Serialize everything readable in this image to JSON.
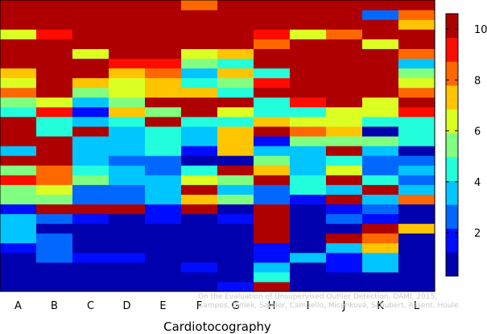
{
  "chart_data": {
    "type": "heatmap",
    "title": "",
    "xlabel": "Cardiotocography",
    "ylabel": "",
    "categories": [
      "A",
      "B",
      "C",
      "D",
      "E",
      "F",
      "G",
      "H",
      "I",
      "J",
      "K",
      "L"
    ],
    "colorbar": {
      "min": 0.3,
      "max": 10.6,
      "ticks": [
        2,
        4,
        6,
        8,
        10
      ],
      "colormap": "jet"
    },
    "rows": 30,
    "columns": [
      {
        "name": "A",
        "values": [
          1,
          1,
          0.8,
          1,
          2,
          3.2,
          3.2,
          3.2,
          2,
          5.6,
          5.8,
          9.4,
          5.2,
          10.2,
          3.2,
          10.2,
          10.2,
          10.2,
          4.2,
          5.6,
          7.8,
          6.6,
          7,
          10.2,
          10.2,
          10.2,
          6,
          10.2,
          10.2,
          10.2
        ]
      },
      {
        "name": "B",
        "values": [
          1,
          1,
          1,
          3,
          3,
          3,
          1,
          3,
          10.2,
          5.6,
          6.6,
          8,
          8,
          10.2,
          10.2,
          10.2,
          4.2,
          4.2,
          8.8,
          6,
          10.2,
          10.2,
          10.2,
          10.2,
          10.2,
          10.2,
          9.4,
          10.2,
          10.2,
          10.2
        ]
      },
      {
        "name": "C",
        "values": [
          0.8,
          1,
          1,
          1.7,
          1,
          1,
          1,
          1.7,
          10.2,
          2.2,
          2.2,
          5.2,
          4.2,
          3.6,
          3.2,
          3.6,
          10.2,
          3.2,
          1.5,
          3.2,
          5.8,
          7,
          10.2,
          10.2,
          6.6,
          10.2,
          10.2,
          10.2,
          10.2,
          10.2
        ]
      },
      {
        "name": "D",
        "values": [
          1,
          1,
          1,
          1.7,
          1,
          1,
          1,
          1,
          10.2,
          2.7,
          2.7,
          3.5,
          3.2,
          2.8,
          3.6,
          3.6,
          3.6,
          4.6,
          7.1,
          5.8,
          6.2,
          6.4,
          7,
          8.8,
          10.2,
          10.2,
          10.2,
          10.2,
          10.2,
          10.2
        ]
      },
      {
        "name": "E",
        "values": [
          1,
          1,
          1,
          1,
          1,
          1,
          1,
          1.7,
          1.7,
          3.6,
          3.2,
          3.5,
          2.8,
          2.8,
          4.2,
          4.2,
          4.5,
          10,
          5.9,
          10,
          7,
          7,
          8,
          8.8,
          10.2,
          10.2,
          10.2,
          10.2,
          10.2,
          10.2
        ]
      },
      {
        "name": "F",
        "values": [
          1,
          1,
          1.7,
          1,
          1,
          1,
          1,
          1,
          10.2,
          7.4,
          10,
          6,
          4.2,
          1,
          1.7,
          4,
          4,
          4.2,
          10.2,
          10.2,
          7.6,
          4.2,
          3.2,
          5,
          6,
          10.2,
          10.2,
          10.2,
          10.2,
          8.2
        ]
      },
      {
        "name": "G",
        "values": [
          1.8,
          1,
          1,
          1,
          1,
          1,
          1,
          1.4,
          1,
          5.2,
          3.8,
          5.2,
          10.2,
          1,
          7,
          7,
          7,
          4.2,
          6.4,
          10.2,
          4.2,
          5,
          7,
          4.2,
          7.2,
          10.2,
          10.2,
          10.2,
          10.2,
          10.2
        ]
      },
      {
        "name": "H",
        "values": [
          10,
          4.2,
          3.6,
          2,
          2,
          10.2,
          10.2,
          10.2,
          10.2,
          2.6,
          2.2,
          10.2,
          7.7,
          5.6,
          4,
          1.5,
          10.2,
          6.9,
          4.2,
          4.2,
          10.2,
          9.4,
          4.2,
          10.2,
          10.2,
          8.2,
          9,
          10.2,
          10.2,
          10.2
        ]
      },
      {
        "name": "I",
        "values": [
          1,
          1,
          1,
          3.2,
          1,
          1,
          1,
          1,
          1,
          1.7,
          4.2,
          4.2,
          3.2,
          3.2,
          3.2,
          5.6,
          8.2,
          6.4,
          4.2,
          9.4,
          10,
          10.2,
          10.2,
          10.2,
          10.2,
          10.2,
          6.2,
          10.2,
          10.2,
          10.2
        ]
      },
      {
        "name": "J",
        "values": [
          1,
          1,
          1.7,
          1.7,
          3.6,
          10,
          1,
          3,
          1.7,
          10.2,
          3.6,
          10.2,
          6,
          4.8,
          10.2,
          5.6,
          7,
          6.8,
          6,
          10.2,
          10.2,
          10.2,
          10.2,
          10.2,
          10.2,
          10.2,
          8.4,
          10.2,
          10.2,
          10.2
        ]
      },
      {
        "name": "K",
        "values": [
          1,
          1,
          3.6,
          3.6,
          7,
          8.5,
          10.2,
          1.7,
          2.6,
          3.5,
          10.2,
          4.2,
          2.6,
          2.6,
          3.6,
          5.8,
          1.2,
          4.3,
          6,
          6.2,
          10.2,
          10.2,
          10.2,
          10.2,
          10.2,
          6.8,
          10.2,
          10.2,
          2.8,
          10.2
        ]
      },
      {
        "name": "L",
        "values": [
          1,
          1,
          1,
          1,
          1,
          1,
          7.2,
          1,
          1,
          8.4,
          3.2,
          2.5,
          3.5,
          3,
          1,
          4.2,
          4.2,
          4.2,
          9.4,
          10.2,
          8.4,
          6.6,
          5.6,
          3.6,
          8,
          10.2,
          10.2,
          7.4,
          8.4,
          10.2
        ]
      }
    ]
  },
  "watermark": {
    "line1": "On the Evaluation of Unsupervised Outlier Detection, DAMI, 2015,",
    "line2": "Campos, Zimek, Sander, Campello, Micenková, Schubert, Assent, Houle"
  }
}
